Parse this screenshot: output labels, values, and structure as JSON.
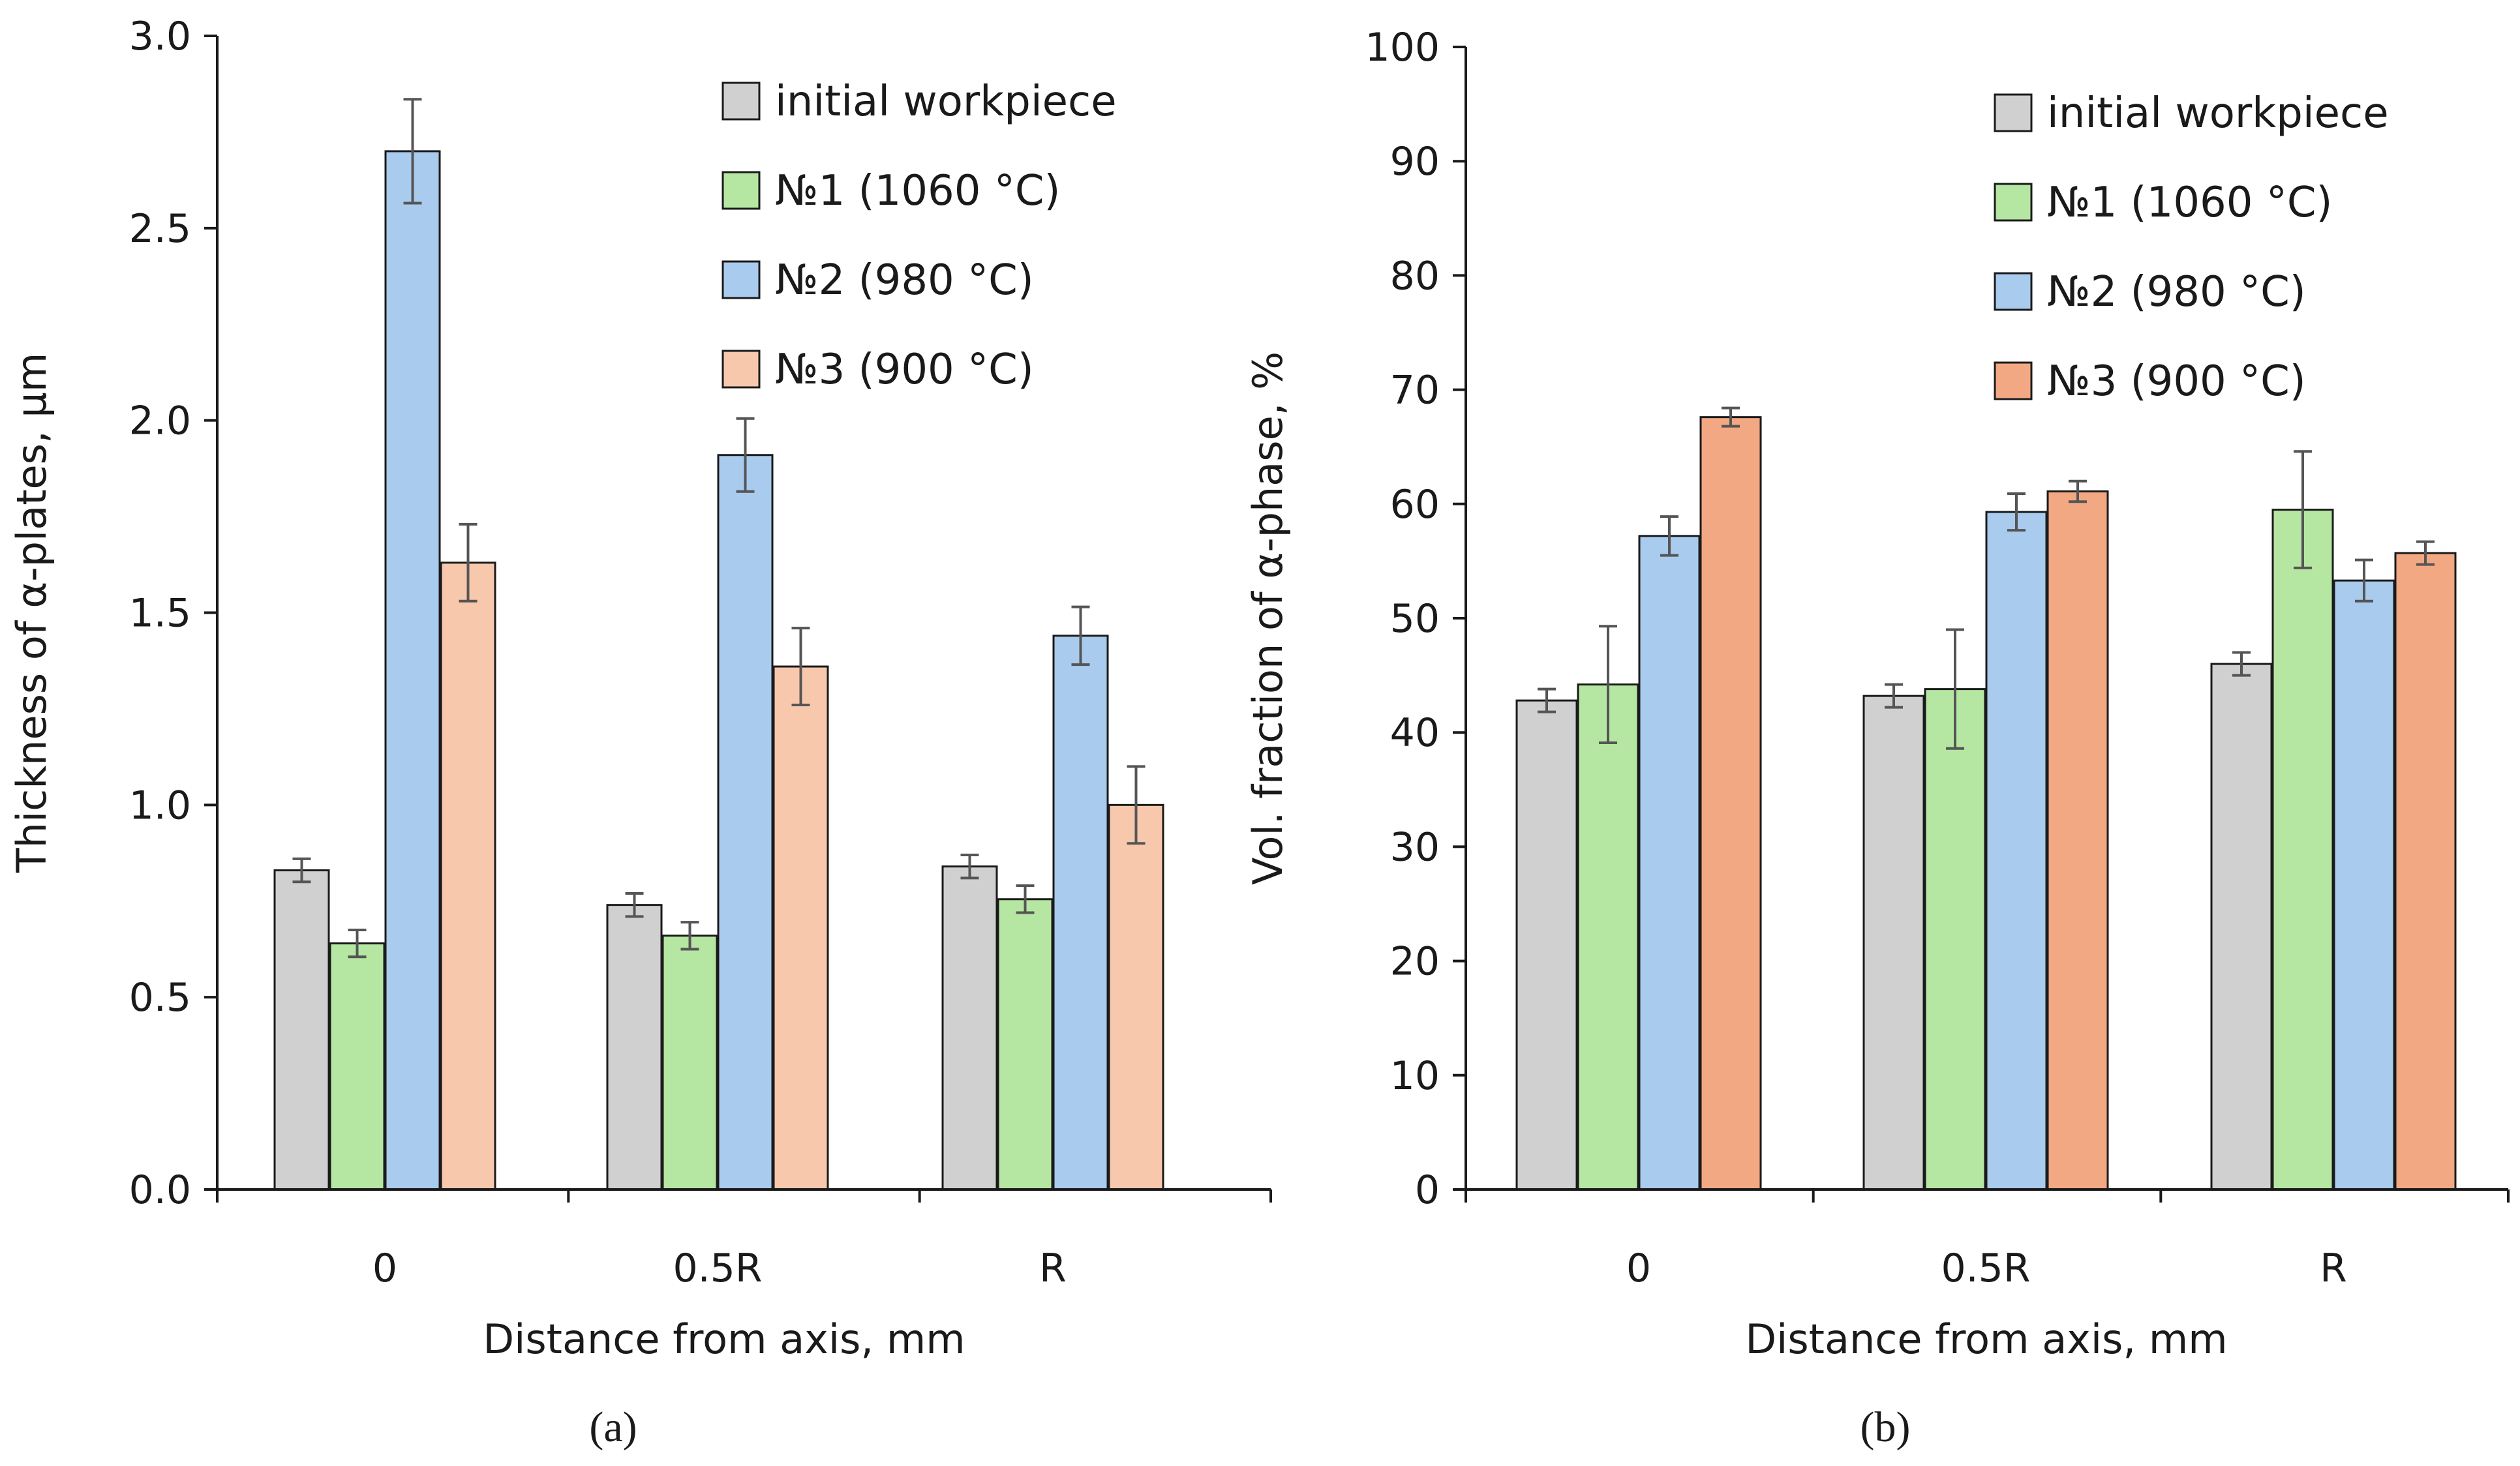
{
  "chart_data": [
    {
      "type": "bar",
      "panel_label": "(a)",
      "ylabel": "Thickness of α-plates, μm",
      "xlabel": "Distance from axis, mm",
      "categories": [
        "0",
        "0.5R",
        "R"
      ],
      "ylim": [
        0,
        3.0
      ],
      "yticks": [
        "0.0",
        "0.5",
        "1.0",
        "1.5",
        "2.0",
        "2.5",
        "3.0"
      ],
      "legend_position": "top-right",
      "series": [
        {
          "name": "initial workpiece",
          "color": "#d0d0d0",
          "values": [
            0.83,
            0.74,
            0.84
          ],
          "errors": [
            0.03,
            0.03,
            0.03
          ]
        },
        {
          "name": "№1 (1060 °C)",
          "color": "#b5e6a2",
          "values": [
            0.64,
            0.66,
            0.755
          ],
          "errors": [
            0.035,
            0.035,
            0.035
          ]
        },
        {
          "name": "№2 (980 °C)",
          "color": "#a9cbee",
          "values": [
            2.7,
            1.91,
            1.44
          ],
          "errors": [
            0.135,
            0.095,
            0.075
          ]
        },
        {
          "name": "№3 (900 °C)",
          "color": "#f8c8ad",
          "values": [
            1.63,
            1.36,
            1.0
          ],
          "errors": [
            0.1,
            0.1,
            0.1
          ]
        }
      ]
    },
    {
      "type": "bar",
      "panel_label": "(b)",
      "ylabel": "Vol. fraction of α-phase, %",
      "xlabel": "Distance from axis, mm",
      "categories": [
        "0",
        "0.5R",
        "R"
      ],
      "ylim": [
        0,
        100
      ],
      "yticks": [
        "0",
        "10",
        "20",
        "30",
        "40",
        "50",
        "60",
        "70",
        "80",
        "90",
        "100"
      ],
      "legend_position": "top-right",
      "series": [
        {
          "name": "initial workpiece",
          "color": "#d0d0d0",
          "values": [
            42.8,
            43.2,
            46.0
          ],
          "errors": [
            1.0,
            1.0,
            1.0
          ]
        },
        {
          "name": "№1 (1060 °C)",
          "color": "#b5e6a2",
          "values": [
            44.2,
            43.8,
            59.5
          ],
          "errors": [
            5.1,
            5.2,
            5.1
          ]
        },
        {
          "name": "№2 (980 °C)",
          "color": "#a9cbee",
          "values": [
            57.2,
            59.3,
            53.3
          ],
          "errors": [
            1.7,
            1.6,
            1.8
          ]
        },
        {
          "name": "№3 (900 °C)",
          "color": "#f2a883",
          "values": [
            67.6,
            61.1,
            55.7
          ],
          "errors": [
            0.8,
            0.9,
            1.0
          ]
        }
      ]
    }
  ]
}
